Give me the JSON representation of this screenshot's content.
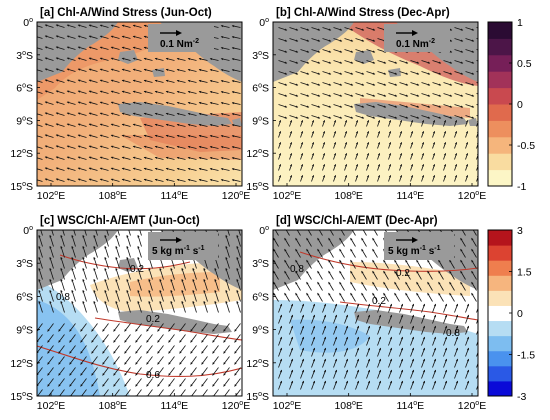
{
  "panels": [
    {
      "id": "a",
      "title": "[a]   Chl-A/Wind Stress (Jun-Oct)",
      "ref_label": "0.1 Nm",
      "ref_sup": "-2",
      "mode": "chl",
      "season": "jun-oct"
    },
    {
      "id": "b",
      "title": "[b]   Chl-A/Wind Stress (Dec-Apr)",
      "ref_label": "0.1 Nm",
      "ref_sup": "-2",
      "mode": "chl",
      "season": "dec-apr"
    },
    {
      "id": "c",
      "title": "[c]   WSC/Chl-A/EMT (Jun-Oct)",
      "ref_label": "5 kg m",
      "ref_sup": "-1",
      "ref_tail": " s",
      "ref_sup2": "-1",
      "mode": "wsc",
      "season": "jun-oct"
    },
    {
      "id": "d",
      "title": "[d]   WSC/Chl-A/EMT (Dec-Apr)",
      "ref_label": "5 kg m",
      "ref_sup": "-1",
      "ref_tail": " s",
      "ref_sup2": "-1",
      "mode": "wsc",
      "season": "dec-apr"
    }
  ],
  "axes": {
    "lat_ticks": [
      "0",
      "3",
      "6",
      "9",
      "12",
      "15"
    ],
    "lat_suffix": "S",
    "lat_zero_suffix": "",
    "lon_ticks": [
      "102",
      "108",
      "114",
      "120"
    ],
    "lon_suffix": "E",
    "degree": "o"
  },
  "colorbars": [
    {
      "id": "top",
      "ticks": [
        "1",
        "0.5",
        "0",
        "-0.5",
        "-1"
      ],
      "colors": [
        "#fcf6c6",
        "#f9dca0",
        "#f5b57c",
        "#ed8f5e",
        "#e06a4d",
        "#c9494f",
        "#a23259",
        "#761f58",
        "#4c1548",
        "#2b0b33"
      ]
    },
    {
      "id": "bottom",
      "ticks": [
        "3",
        "1.5",
        "0",
        "-1.5",
        "-3"
      ],
      "colors": [
        "#0a0ad8",
        "#2a59e6",
        "#4a92ee",
        "#7dbdf0",
        "#b6ddf3",
        "#ffffff",
        "#fbe2b7",
        "#f6b57e",
        "#ef7e4e",
        "#dc4331",
        "#b5141c"
      ]
    }
  ],
  "contour_labels": {
    "c": [
      "0.2",
      "0.8",
      "0.2",
      "0.6"
    ],
    "d": [
      "0.8",
      "0.2",
      "0.2",
      "0.8"
    ]
  },
  "colors": {
    "land": "#9a9a9a",
    "arrow": "#111111",
    "contour": "#c0392b"
  }
}
